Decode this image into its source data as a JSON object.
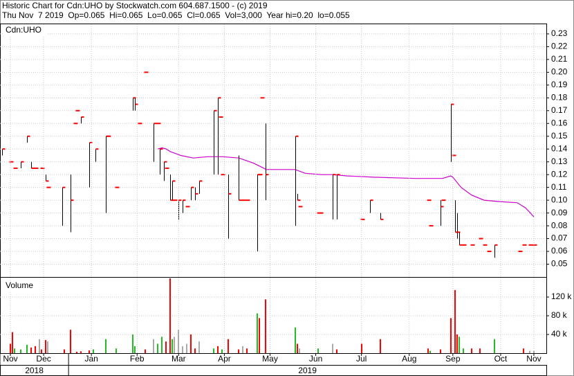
{
  "chart_data": [
    {
      "type": "ohlc",
      "title": "Historic Chart for Cdn:UHO by Stockwatch.com 604.687.1500 - (c) 2019",
      "subtitle": "Thu Nov  7 2019  Op=0.065  Hi=0.065  Lo=0.065  Cl=0.065  Vol=3,000  Year hi=0.20  lo=0.055",
      "label": "Cdn:UHO",
      "color": "#000000",
      "close_color": "#ff0000",
      "xlim": [
        0,
        263
      ],
      "ylim": [
        0.04,
        0.237
      ],
      "yticks": [
        0.05,
        0.06,
        0.07,
        0.08,
        0.09,
        {
          "value": 0.1,
          "label": "0.10"
        },
        0.11,
        0.12,
        0.13,
        0.14,
        0.15,
        0.16,
        0.17,
        0.18,
        0.19,
        {
          "value": 0.2,
          "label": "0.20"
        },
        0.21,
        0.22,
        0.23
      ],
      "grid": true,
      "x": [
        1,
        5,
        7,
        10,
        13,
        15,
        17,
        20,
        22,
        23,
        30,
        34,
        36,
        37,
        39,
        43,
        46,
        51,
        52,
        56,
        64,
        65,
        67,
        70,
        74,
        76,
        77,
        79,
        80,
        82,
        83,
        84,
        86,
        88,
        90,
        92,
        94,
        96,
        103,
        105,
        106,
        107,
        110,
        115,
        117,
        119,
        124,
        125,
        126,
        128,
        142,
        143,
        144,
        153,
        154,
        160,
        162,
        174,
        178,
        183,
        206,
        207,
        212,
        213,
        217,
        218,
        219,
        220,
        221,
        223,
        227,
        231,
        233,
        235,
        238,
        250,
        252,
        255,
        257
      ],
      "high": [
        0.14,
        0.13,
        0.125,
        0.13,
        0.15,
        0.13,
        0.125,
        0.125,
        0.12,
        0.11,
        0.11,
        0.12,
        0.16,
        0.17,
        0.165,
        0.145,
        0.14,
        0.15,
        0.15,
        0.11,
        0.18,
        0.18,
        0.16,
        0.2,
        0.16,
        0.16,
        0.14,
        0.13,
        0.125,
        0.12,
        0.115,
        0.1,
        0.1,
        0.1,
        0.095,
        0.11,
        0.11,
        0.115,
        0.17,
        0.18,
        0.165,
        0.12,
        0.12,
        0.135,
        0.1,
        0.1,
        0.12,
        0.12,
        0.18,
        0.16,
        0.15,
        0.105,
        0.095,
        0.09,
        0.09,
        0.12,
        0.12,
        0.085,
        0.1,
        0.09,
        0.1,
        0.08,
        0.1,
        0.1,
        0.175,
        0.135,
        0.1,
        0.09,
        0.075,
        0.065,
        0.065,
        0.07,
        0.065,
        0.06,
        0.065,
        0.06,
        0.065,
        0.065,
        0.065
      ],
      "low": [
        0.135,
        0.13,
        0.125,
        0.125,
        0.145,
        0.125,
        0.125,
        0.125,
        0.115,
        0.11,
        0.08,
        0.075,
        0.16,
        0.17,
        0.16,
        0.11,
        0.13,
        0.09,
        0.15,
        0.11,
        0.17,
        0.17,
        0.16,
        0.2,
        0.13,
        0.16,
        0.12,
        0.115,
        0.125,
        0.1,
        0.1,
        0.1,
        0.085,
        0.09,
        0.095,
        0.1,
        0.1,
        0.105,
        0.12,
        0.12,
        0.165,
        0.12,
        0.07,
        0.1,
        0.1,
        0.1,
        0.06,
        0.12,
        0.18,
        0.1,
        0.08,
        0.1,
        0.095,
        0.09,
        0.09,
        0.085,
        0.085,
        0.085,
        0.09,
        0.085,
        0.1,
        0.08,
        0.08,
        0.1,
        0.13,
        0.135,
        0.075,
        0.07,
        0.065,
        0.065,
        0.065,
        0.07,
        0.065,
        0.06,
        0.055,
        0.06,
        0.065,
        0.065,
        0.065
      ],
      "close": [
        0.14,
        0.13,
        0.125,
        0.13,
        0.15,
        0.125,
        0.125,
        0.125,
        0.115,
        0.11,
        0.11,
        0.1,
        0.16,
        0.17,
        0.165,
        0.145,
        0.14,
        0.15,
        0.15,
        0.11,
        0.18,
        0.175,
        0.16,
        0.2,
        0.16,
        0.16,
        0.14,
        0.13,
        0.125,
        0.1,
        0.115,
        0.1,
        0.1,
        0.1,
        0.095,
        0.11,
        0.105,
        0.115,
        0.17,
        0.18,
        0.165,
        0.12,
        0.105,
        0.1,
        0.1,
        0.1,
        0.12,
        0.12,
        0.18,
        0.12,
        0.15,
        0.1,
        0.095,
        0.09,
        0.09,
        0.12,
        0.12,
        0.085,
        0.1,
        0.085,
        0.1,
        0.08,
        0.095,
        0.1,
        0.175,
        0.135,
        0.075,
        0.075,
        0.065,
        0.065,
        0.065,
        0.07,
        0.065,
        0.06,
        0.065,
        0.06,
        0.065,
        0.065,
        0.065
      ],
      "overlay": {
        "color": "#cc00cc",
        "x": [
          76,
          78,
          80,
          82,
          87,
          93,
          100,
          107,
          115,
          122,
          127,
          128,
          142,
          147,
          155,
          160,
          167,
          180,
          200,
          213,
          217,
          218,
          222,
          227,
          233,
          240,
          249,
          253,
          257
        ],
        "values": [
          0.14,
          0.141,
          0.14,
          0.138,
          0.135,
          0.133,
          0.134,
          0.134,
          0.133,
          0.129,
          0.125,
          0.124,
          0.124,
          0.121,
          0.12,
          0.12,
          0.119,
          0.118,
          0.117,
          0.117,
          0.119,
          0.118,
          0.11,
          0.104,
          0.1,
          0.099,
          0.098,
          0.094,
          0.087
        ]
      }
    },
    {
      "type": "bar",
      "label": "Volume",
      "xlim": [
        0,
        263
      ],
      "ylim": [
        0,
        160000
      ],
      "yticks": [
        {
          "value": 40000,
          "label": "40 k"
        },
        {
          "value": 80000,
          "label": "80 k"
        },
        {
          "value": 120000,
          "label": "120 k"
        }
      ],
      "grid": true,
      "xticks": [
        {
          "value": 5,
          "label": "Nov"
        },
        {
          "value": 21,
          "label": "Dec"
        },
        {
          "value": 44,
          "label": "Jan"
        },
        {
          "value": 66,
          "label": "Feb"
        },
        {
          "value": 86,
          "label": "Mar"
        },
        {
          "value": 108,
          "label": "Apr"
        },
        {
          "value": 130,
          "label": "May"
        },
        {
          "value": 152,
          "label": "Jun"
        },
        {
          "value": 174,
          "label": "Jul"
        },
        {
          "value": 197,
          "label": "Aug"
        },
        {
          "value": 218,
          "label": "Sep"
        },
        {
          "value": 241,
          "label": "Oct"
        },
        {
          "value": 257,
          "label": "Nov"
        }
      ],
      "year_ticks": [
        {
          "value": 0,
          "label": "2018"
        },
        {
          "value": 33,
          "label": "2019"
        }
      ],
      "x": [
        5,
        6,
        7,
        10,
        13,
        15,
        17,
        19,
        20,
        22,
        23,
        31,
        34,
        37,
        39,
        43,
        45,
        51,
        56,
        64,
        65,
        70,
        74,
        76,
        78,
        80,
        82,
        83,
        84,
        86,
        88,
        90,
        92,
        94,
        96,
        103,
        105,
        107,
        110,
        115,
        117,
        119,
        124,
        125,
        128,
        142,
        143,
        144,
        153,
        160,
        162,
        174,
        183,
        206,
        207,
        212,
        217,
        219,
        220,
        221,
        223,
        227,
        231,
        238,
        252,
        255,
        257
      ],
      "values": [
        20000,
        45000,
        10000,
        8000,
        18000,
        12000,
        15000,
        30000,
        8000,
        28000,
        25000,
        8000,
        50000,
        3000,
        4000,
        6000,
        8000,
        30000,
        10000,
        40000,
        15000,
        8000,
        30000,
        20000,
        35000,
        25000,
        160000,
        30000,
        35000,
        50000,
        15000,
        20000,
        40000,
        10000,
        25000,
        10000,
        15000,
        8000,
        30000,
        8000,
        15000,
        10000,
        85000,
        75000,
        115000,
        55000,
        20000,
        10000,
        10000,
        20000,
        8000,
        20000,
        30000,
        10000,
        5000,
        8000,
        75000,
        135000,
        40000,
        35000,
        10000,
        10000,
        10000,
        30000,
        10000,
        5000,
        5000
      ],
      "colors": [
        "#ff0000",
        "#ff0000",
        "#22bb22",
        "#22bb22",
        "#22bb22",
        "#ff0000",
        "#ff0000",
        "#aaaaaa",
        "#ff0000",
        "#ff0000",
        "#aaaaaa",
        "#ff0000",
        "#ff0000",
        "#ff0000",
        "#ff0000",
        "#ff0000",
        "#22bb22",
        "#22bb22",
        "#22bb22",
        "#22bb22",
        "#22bb22",
        "#ff0000",
        "#aaaaaa",
        "#22bb22",
        "#22bb22",
        "#ff0000",
        "#ff0000",
        "#22bb22",
        "#aaaaaa",
        "#aaaaaa",
        "#aaaaaa",
        "#aaaaaa",
        "#ff0000",
        "#ff0000",
        "#aaaaaa",
        "#22bb22",
        "#ff0000",
        "#22bb22",
        "#ff0000",
        "#ff0000",
        "#aaaaaa",
        "#ff0000",
        "#22bb22",
        "#ff0000",
        "#ff0000",
        "#22bb22",
        "#ff0000",
        "#aaaaaa",
        "#22bb22",
        "#aaaaaa",
        "#ff0000",
        "#ff0000",
        "#ff0000",
        "#ff0000",
        "#22bb22",
        "#ff0000",
        "#ff0000",
        "#ff0000",
        "#ff0000",
        "#22bb22",
        "#22bb22",
        "#ff0000",
        "#ff0000",
        "#22bb22",
        "#ff0000",
        "#aaaaaa",
        "#aaaaaa"
      ]
    }
  ]
}
